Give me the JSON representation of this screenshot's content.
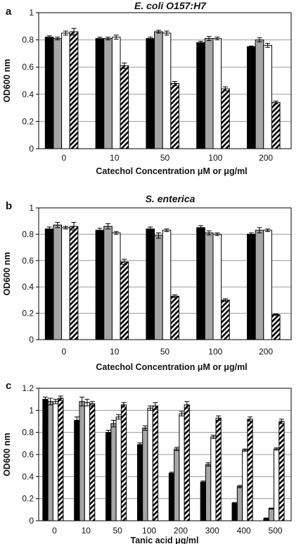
{
  "chart_data": [
    {
      "type": "bar",
      "panel_label": "a",
      "title": "E. coli O157:H7",
      "xlabel": "Catechol Concentration μM or μg/ml",
      "ylabel": "OD600 nm",
      "ylim": [
        0,
        1
      ],
      "yticks": [
        "0",
        "0.2",
        "0.4",
        "0.6",
        "0.8",
        "1"
      ],
      "grid": true,
      "categories": [
        "0",
        "10",
        "50",
        "100",
        "200"
      ],
      "series": [
        {
          "fill": "#000000",
          "pattern": "solid",
          "values": [
            0.82,
            0.81,
            0.81,
            0.78,
            0.75
          ],
          "errors": [
            0.01,
            0.01,
            0.01,
            0.01,
            0.005
          ]
        },
        {
          "fill": "#a6a6a6",
          "pattern": "solid",
          "values": [
            0.81,
            0.81,
            0.86,
            0.81,
            0.8
          ],
          "errors": [
            0.01,
            0.01,
            0.01,
            0.015,
            0.015
          ]
        },
        {
          "fill": "#ffffff",
          "pattern": "solid",
          "values": [
            0.85,
            0.82,
            0.85,
            0.81,
            0.76
          ],
          "errors": [
            0.015,
            0.015,
            0.015,
            0.01,
            0.015
          ]
        },
        {
          "fill": "#ffffff",
          "pattern": "hatch",
          "values": [
            0.86,
            0.61,
            0.48,
            0.44,
            0.34
          ],
          "errors": [
            0.025,
            0.02,
            0.015,
            0.015,
            0.01
          ]
        }
      ]
    },
    {
      "type": "bar",
      "panel_label": "b",
      "title": "S. enterica",
      "xlabel": "Catechol Concentration μM or μg/ml",
      "ylabel": "OD600 nm",
      "ylim": [
        0,
        1
      ],
      "yticks": [
        "0",
        "0.2",
        "0.4",
        "0.6",
        "0.8",
        "1"
      ],
      "grid": true,
      "categories": [
        "0",
        "10",
        "50",
        "100",
        "200"
      ],
      "series": [
        {
          "fill": "#000000",
          "pattern": "solid",
          "values": [
            0.84,
            0.83,
            0.84,
            0.85,
            0.8
          ],
          "errors": [
            0.015,
            0.015,
            0.015,
            0.015,
            0.01
          ]
        },
        {
          "fill": "#a6a6a6",
          "pattern": "solid",
          "values": [
            0.87,
            0.86,
            0.79,
            0.81,
            0.83
          ],
          "errors": [
            0.02,
            0.02,
            0.02,
            0.015,
            0.02
          ]
        },
        {
          "fill": "#ffffff",
          "pattern": "solid",
          "values": [
            0.85,
            0.81,
            0.83,
            0.8,
            0.83
          ],
          "errors": [
            0.01,
            0.01,
            0.01,
            0.01,
            0.01
          ]
        },
        {
          "fill": "#ffffff",
          "pattern": "hatch",
          "values": [
            0.86,
            0.59,
            0.33,
            0.3,
            0.19
          ],
          "errors": [
            0.03,
            0.02,
            0.01,
            0.01,
            0.005
          ]
        }
      ]
    },
    {
      "type": "bar",
      "panel_label": "c",
      "title": "",
      "xlabel": "Tanic acid μg/ml",
      "ylabel": "OD600 nm",
      "ylim": [
        0,
        1.2
      ],
      "yticks": [
        "0",
        "0.2",
        "0.4",
        "0.6",
        "0.8",
        "1",
        "1.2"
      ],
      "grid": true,
      "categories": [
        "0",
        "10",
        "50",
        "100",
        "200",
        "300",
        "400",
        "500"
      ],
      "series": [
        {
          "fill": "#000000",
          "pattern": "solid",
          "values": [
            1.1,
            0.91,
            0.8,
            0.69,
            0.43,
            0.35,
            0.16,
            0.02
          ],
          "errors": [
            0.02,
            0.03,
            0.02,
            0.015,
            0.01,
            0.01,
            0.005,
            0.005
          ]
        },
        {
          "fill": "#a6a6a6",
          "pattern": "solid",
          "values": [
            1.08,
            1.08,
            0.88,
            0.84,
            0.65,
            0.51,
            0.31,
            0.11
          ],
          "errors": [
            0.03,
            0.04,
            0.03,
            0.02,
            0.015,
            0.015,
            0.01,
            0.005
          ]
        },
        {
          "fill": "#ffffff",
          "pattern": "solid",
          "values": [
            1.08,
            1.07,
            0.94,
            1.02,
            0.97,
            0.76,
            0.64,
            0.65
          ],
          "errors": [
            0.02,
            0.03,
            0.02,
            0.02,
            0.02,
            0.015,
            0.01,
            0.01
          ]
        },
        {
          "fill": "#ffffff",
          "pattern": "hatch",
          "values": [
            1.11,
            1.06,
            1.05,
            1.04,
            1.05,
            0.93,
            0.92,
            0.9
          ],
          "errors": [
            0.02,
            0.02,
            0.02,
            0.03,
            0.03,
            0.02,
            0.02,
            0.02
          ]
        }
      ]
    }
  ]
}
